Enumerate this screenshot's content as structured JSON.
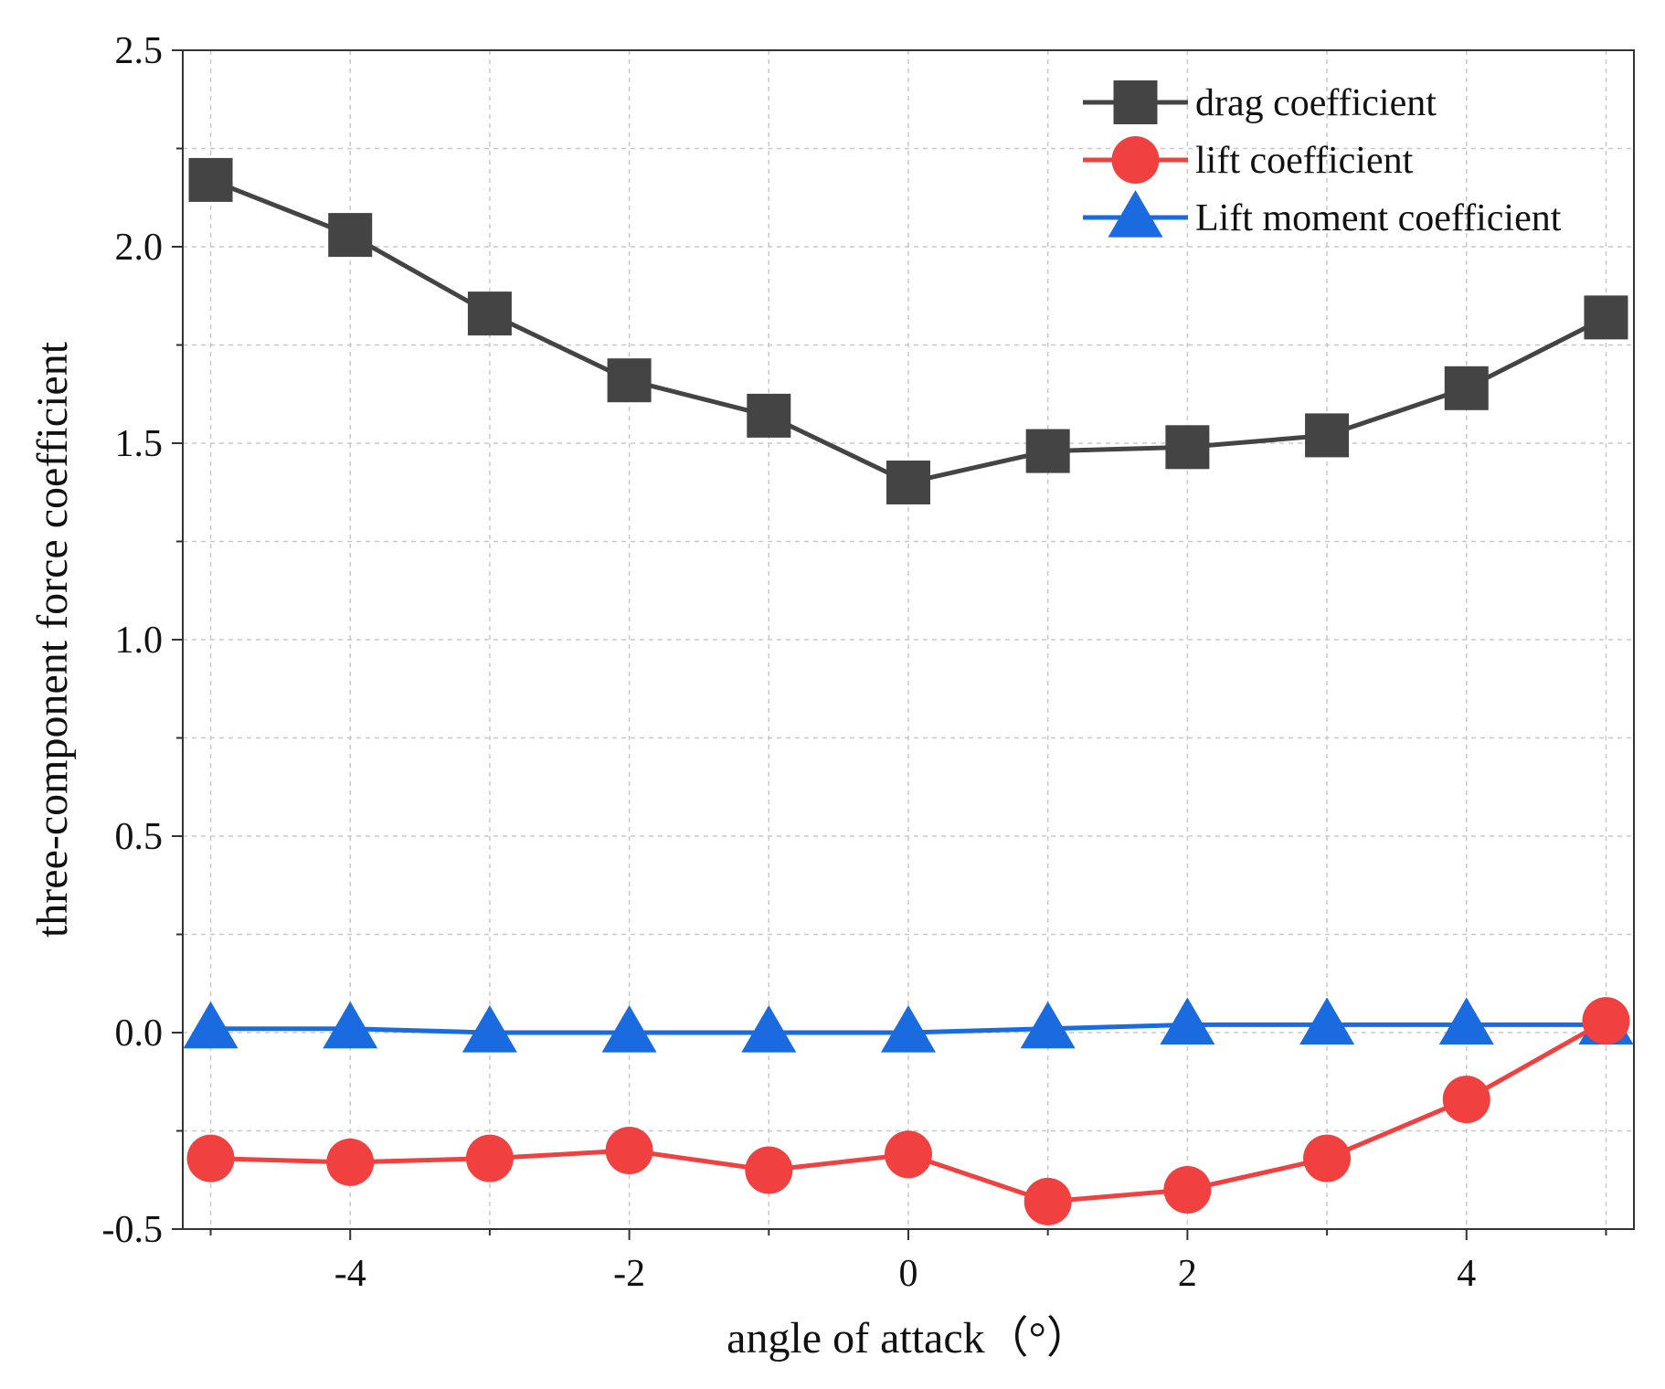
{
  "chart_data": {
    "type": "line",
    "title": "",
    "xlabel": "angle of attack（°）",
    "ylabel": "three-component force coefficient",
    "xlim": [
      -5.2,
      5.2
    ],
    "ylim": [
      -0.5,
      2.5
    ],
    "xticks": [
      -4,
      -2,
      0,
      2,
      4
    ],
    "xtick_labels": [
      "-4",
      "-2",
      "0",
      "2",
      "4"
    ],
    "xminor": [
      -5,
      -3,
      -1,
      1,
      3,
      5
    ],
    "yticks": [
      -0.5,
      0.0,
      0.5,
      1.0,
      1.5,
      2.0,
      2.5
    ],
    "ytick_labels": [
      "-0.5",
      "0.0",
      "0.5",
      "1.0",
      "1.5",
      "2.0",
      "2.5"
    ],
    "yminor": [
      -0.25,
      0.25,
      0.75,
      1.25,
      1.75,
      2.25
    ],
    "grid": true,
    "legend_position": "top-right",
    "x": [
      -5,
      -4,
      -3,
      -2,
      -1,
      0,
      1,
      2,
      3,
      4,
      5
    ],
    "series": [
      {
        "name": "drag coefficient",
        "marker": "square",
        "color": "#444444",
        "values": [
          2.17,
          2.03,
          1.83,
          1.66,
          1.57,
          1.4,
          1.48,
          1.49,
          1.52,
          1.64,
          1.82
        ]
      },
      {
        "name": "lift coefficient",
        "marker": "circle",
        "color": "#f04040",
        "values": [
          -0.32,
          -0.33,
          -0.32,
          -0.3,
          -0.35,
          -0.31,
          -0.43,
          -0.4,
          -0.32,
          -0.17,
          0.03
        ]
      },
      {
        "name": "Lift moment coefficient",
        "marker": "triangle",
        "color": "#1a6be0",
        "values": [
          0.01,
          0.01,
          0.0,
          0.0,
          0.0,
          0.0,
          0.01,
          0.02,
          0.02,
          0.02,
          0.02
        ]
      }
    ]
  }
}
